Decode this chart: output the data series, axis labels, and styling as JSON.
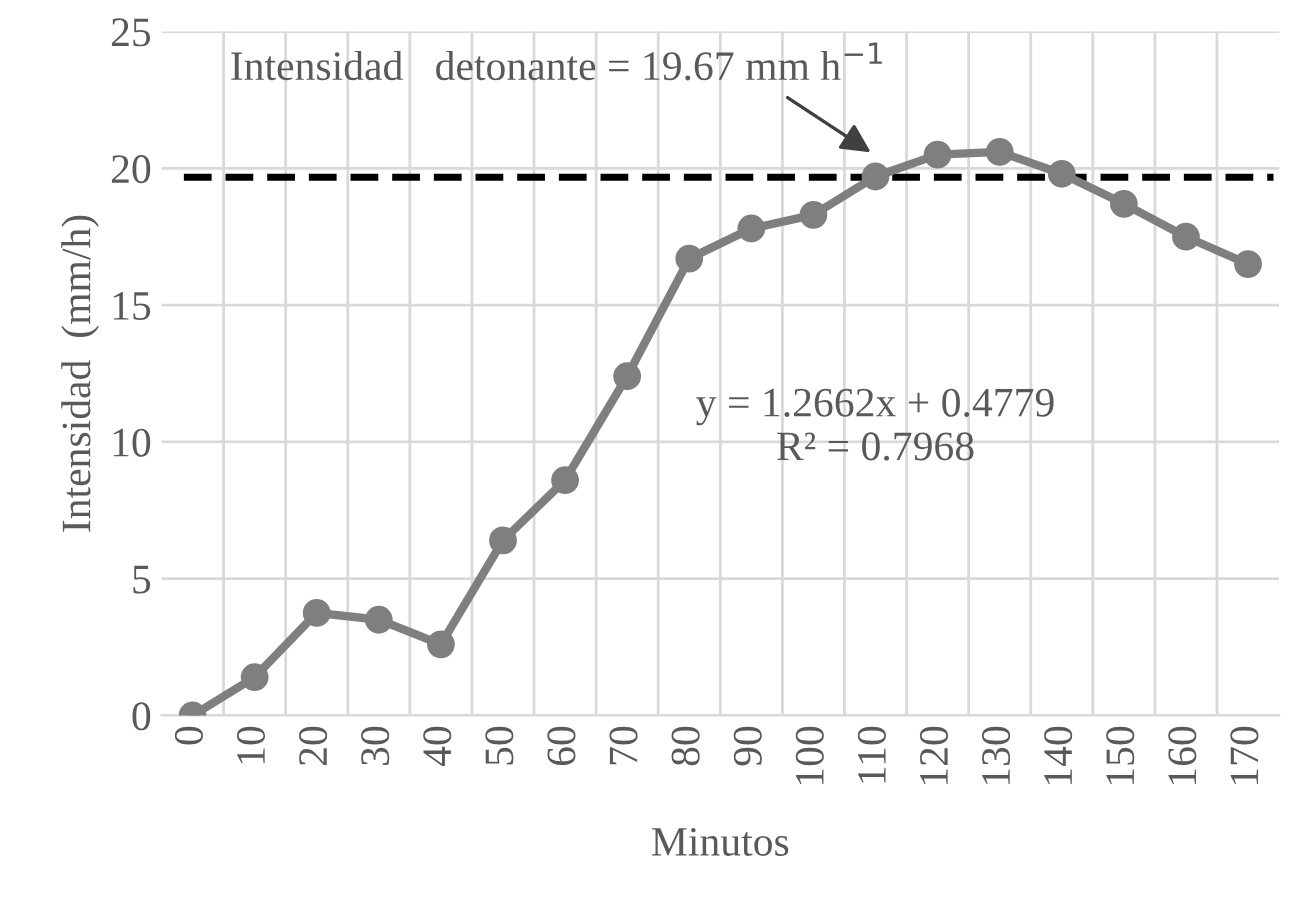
{
  "chart_data": {
    "type": "line",
    "xlabel": "Minutos",
    "ylabel": "Intensidad  (mm/h)",
    "categories": [
      "0",
      "10",
      "20",
      "30",
      "40",
      "50",
      "60",
      "70",
      "80",
      "90",
      "100",
      "110",
      "120",
      "130",
      "140",
      "150",
      "160",
      "170"
    ],
    "series": [
      {
        "color": "#7f7f7f",
        "values": [
          0,
          1.4,
          3.75,
          3.5,
          2.6,
          6.4,
          8.6,
          12.4,
          16.7,
          17.8,
          18.3,
          19.7,
          20.5,
          20.6,
          19.8,
          18.7,
          17.5,
          16.5
        ]
      }
    ],
    "ylim": [
      0,
      25
    ],
    "yticks": [
      0,
      5,
      10,
      15,
      20,
      25
    ],
    "grid": true,
    "marker": "circle",
    "line_style": "solid",
    "ref_lines": [
      {
        "axis": "y",
        "value": 19.67,
        "color": "#000000",
        "line_style": "dashed"
      }
    ],
    "annotations": [
      {
        "text": "Intensidad   detonante = 19.67 mm h$^{−1}$",
        "x": "110",
        "y": 19.67
      },
      "y = 1.2662x + 0.4779\nR² = 0.7968"
    ]
  }
}
